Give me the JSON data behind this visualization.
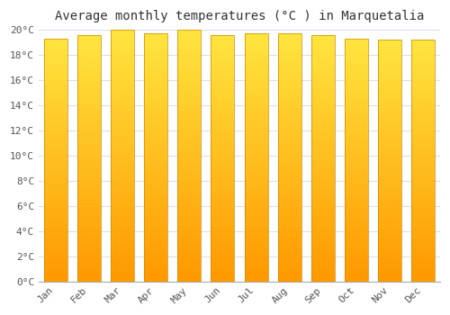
{
  "title": "Average monthly temperatures (°C ) in Marquetalia",
  "months": [
    "Jan",
    "Feb",
    "Mar",
    "Apr",
    "May",
    "Jun",
    "Jul",
    "Aug",
    "Sep",
    "Oct",
    "Nov",
    "Dec"
  ],
  "temperatures": [
    19.3,
    19.6,
    20.0,
    19.7,
    20.0,
    19.6,
    19.7,
    19.7,
    19.6,
    19.3,
    19.2,
    19.2
  ],
  "ylim": [
    0,
    20
  ],
  "yticks": [
    0,
    2,
    4,
    6,
    8,
    10,
    12,
    14,
    16,
    18,
    20
  ],
  "bar_color_top": "#FFCC44",
  "bar_color_bottom": "#FF9900",
  "bar_edge_color": "#CC8800",
  "background_color": "#FFFFFF",
  "chart_bg_color": "#FFFFFF",
  "grid_color": "#DDDDEE",
  "title_fontsize": 10,
  "tick_fontsize": 8,
  "bar_width": 0.7
}
